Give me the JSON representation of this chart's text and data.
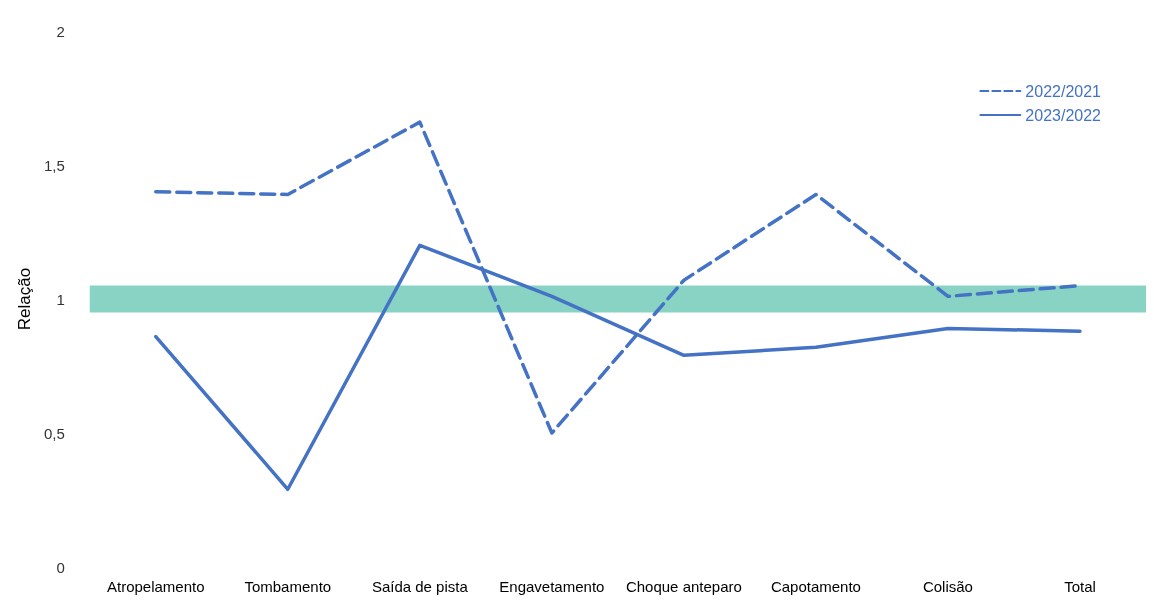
{
  "chart_data": {
    "type": "line",
    "ylabel": "Relação",
    "categories": [
      "Atropelamento",
      "Tombamento",
      "Saída de pista",
      "Engavetamento",
      "Choque anteparo",
      "Capotamento",
      "Colisão",
      "Total"
    ],
    "series": [
      {
        "name": "2022/2021",
        "color": "#4472c4",
        "line_style": "dashed",
        "values": [
          1.4,
          1.39,
          1.66,
          0.5,
          1.07,
          1.39,
          1.01,
          1.05
        ]
      },
      {
        "name": "2023/2022",
        "color": "#4472c4",
        "line_style": "solid",
        "values": [
          0.86,
          0.29,
          1.2,
          1.01,
          0.79,
          0.82,
          0.89,
          0.88
        ]
      }
    ],
    "ylim": [
      0,
      2
    ],
    "yticks": [
      0,
      {
        "value": 0.5,
        "label": "0,5"
      },
      1,
      {
        "value": 1.5,
        "label": "1,5"
      },
      2
    ],
    "bands": [
      {
        "axis": "y",
        "from": 0.95,
        "to": 1.05,
        "color": "#88d3c3"
      }
    ],
    "grid": false,
    "legend": "top right",
    "marker": "none"
  }
}
